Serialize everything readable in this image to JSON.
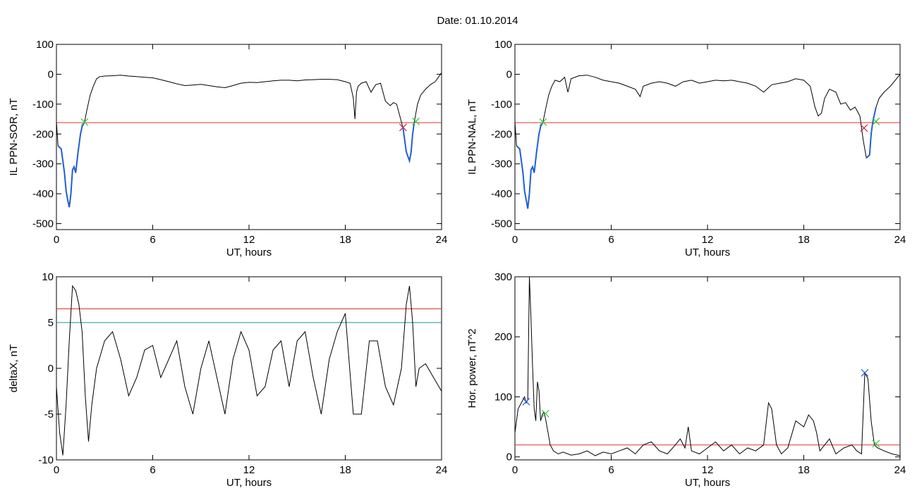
{
  "figure_title": "Date:  01.10.2014",
  "chart_data": [
    {
      "type": "line",
      "ylabel": "IL PPN-SOR, nT",
      "xlabel": "UT, hours",
      "xlim": [
        0,
        24
      ],
      "ylim": [
        -520,
        100
      ],
      "xticks": [
        "0",
        "6",
        "12",
        "18",
        "24"
      ],
      "xtick_values": [
        0,
        6,
        12,
        18,
        24
      ],
      "yticks": [
        "100",
        "0",
        "-100",
        "-200",
        "-300",
        "-400",
        "-500"
      ],
      "ytick_values": [
        100,
        0,
        -100,
        -200,
        -300,
        -400,
        -500
      ],
      "grid": false,
      "colors": {
        "series": "#000000",
        "highlight": "#1f5fd6",
        "threshold": "#e03030",
        "marker_green": "#33cc33",
        "marker_red": "#cc2244"
      },
      "series": [
        {
          "values_x": [
            0,
            0.1,
            0.3,
            0.5,
            0.6,
            0.7,
            0.8,
            0.9,
            1.0,
            1.1,
            1.2,
            1.35,
            1.5,
            1.6,
            1.75,
            1.9,
            2.1,
            2.3,
            2.5,
            2.7,
            3.0,
            3.5,
            4.0,
            4.5,
            5.0,
            5.5,
            6.0,
            6.5,
            7.0,
            7.5,
            8.0,
            8.5,
            9.0,
            9.5,
            10.0,
            10.5,
            11.0,
            11.5,
            12.0,
            12.5,
            13.0,
            13.5,
            14.0,
            14.5,
            15.0,
            15.5,
            16.0,
            16.5,
            17.0,
            17.5,
            18.0,
            18.3,
            18.5,
            18.6,
            18.7,
            18.8,
            19.0,
            19.3,
            19.6,
            19.9,
            20.2,
            20.5,
            20.8,
            21.0,
            21.2,
            21.4,
            21.6,
            21.8,
            22.0,
            22.1,
            22.2,
            22.3,
            22.5,
            22.7,
            23.0,
            23.3,
            23.6,
            23.8,
            24.0
          ],
          "values_y": [
            -160,
            -240,
            -250,
            -330,
            -390,
            -420,
            -445,
            -400,
            -320,
            -310,
            -330,
            -260,
            -200,
            -175,
            -160,
            -120,
            -70,
            -40,
            -15,
            -8,
            -6,
            -5,
            -3,
            -6,
            -8,
            -10,
            -12,
            -18,
            -25,
            -32,
            -38,
            -36,
            -34,
            -38,
            -42,
            -45,
            -38,
            -30,
            -27,
            -28,
            -25,
            -22,
            -20,
            -20,
            -22,
            -19,
            -18,
            -17,
            -17,
            -18,
            -25,
            -30,
            -80,
            -150,
            -60,
            -40,
            -30,
            -25,
            -60,
            -35,
            -30,
            -90,
            -105,
            -95,
            -100,
            -140,
            -180,
            -260,
            -290,
            -260,
            -200,
            -160,
            -100,
            -70,
            -50,
            -35,
            -25,
            -10,
            5
          ]
        }
      ],
      "threshold": -162,
      "marker_x": [
        1.75,
        21.6,
        22.4
      ],
      "marker_y": [
        -160,
        -178,
        -158
      ],
      "highlight_ranges": [
        [
          0.1,
          1.75
        ],
        [
          21.6,
          22.4
        ]
      ]
    },
    {
      "type": "line",
      "ylabel": "IL PPN-NAL, nT",
      "xlabel": "UT, hours",
      "xlim": [
        0,
        24
      ],
      "ylim": [
        -520,
        100
      ],
      "xticks": [
        "0",
        "6",
        "12",
        "18",
        "24"
      ],
      "xtick_values": [
        0,
        6,
        12,
        18,
        24
      ],
      "yticks": [
        "100",
        "0",
        "-100",
        "-200",
        "-300",
        "-400",
        "-500"
      ],
      "ytick_values": [
        100,
        0,
        -100,
        -200,
        -300,
        -400,
        -500
      ],
      "grid": false,
      "colors": {
        "series": "#000000",
        "highlight": "#1f5fd6",
        "threshold": "#e03030",
        "marker_green": "#33cc33",
        "marker_red": "#cc2244"
      },
      "series": [
        {
          "values_x": [
            0,
            0.1,
            0.3,
            0.5,
            0.6,
            0.7,
            0.8,
            0.9,
            1.0,
            1.1,
            1.2,
            1.35,
            1.5,
            1.6,
            1.75,
            1.9,
            2.1,
            2.3,
            2.5,
            2.8,
            3.1,
            3.3,
            3.5,
            4.0,
            4.5,
            5.0,
            5.5,
            6.0,
            6.5,
            7.0,
            7.5,
            7.8,
            8.0,
            8.5,
            9.0,
            9.5,
            10.0,
            10.5,
            11.0,
            11.5,
            12.0,
            12.5,
            13.0,
            13.5,
            14.0,
            14.5,
            15.0,
            15.5,
            16.0,
            16.5,
            17.0,
            17.5,
            18.0,
            18.4,
            18.7,
            18.9,
            19.1,
            19.3,
            19.6,
            20.0,
            20.3,
            20.6,
            20.9,
            21.2,
            21.5,
            21.7,
            21.9,
            22.1,
            22.2,
            22.3,
            22.5,
            22.7,
            23.0,
            23.4,
            23.7,
            24.0
          ],
          "values_y": [
            -160,
            -240,
            -250,
            -330,
            -390,
            -420,
            -450,
            -400,
            -320,
            -310,
            -330,
            -260,
            -200,
            -175,
            -160,
            -120,
            -70,
            -40,
            -20,
            -25,
            -10,
            -60,
            -15,
            -5,
            -3,
            -10,
            -20,
            -25,
            -30,
            -40,
            -50,
            -75,
            -40,
            -30,
            -25,
            -30,
            -40,
            -25,
            -20,
            -30,
            -25,
            -20,
            -22,
            -20,
            -25,
            -30,
            -40,
            -60,
            -35,
            -30,
            -25,
            -15,
            -20,
            -40,
            -110,
            -140,
            -130,
            -80,
            -50,
            -60,
            -100,
            -95,
            -120,
            -110,
            -140,
            -220,
            -280,
            -270,
            -200,
            -160,
            -110,
            -80,
            -60,
            -40,
            -20,
            0
          ]
        }
      ],
      "threshold": -162,
      "marker_x": [
        1.75,
        21.75,
        22.5
      ],
      "marker_y": [
        -160,
        -180,
        -158
      ],
      "highlight_ranges": [
        [
          0.1,
          1.75
        ],
        [
          21.75,
          22.5
        ]
      ]
    },
    {
      "type": "line",
      "ylabel": "deltaX, nT",
      "xlabel": "UT, hours",
      "xlim": [
        0,
        24
      ],
      "ylim": [
        -10,
        10
      ],
      "xticks": [
        "0",
        "6",
        "12",
        "18",
        "24"
      ],
      "xtick_values": [
        0,
        6,
        12,
        18,
        24
      ],
      "yticks": [
        "10",
        "5",
        "0",
        "-5",
        "-10"
      ],
      "ytick_values": [
        10,
        5,
        0,
        -5,
        -10
      ],
      "grid": false,
      "colors": {
        "series": "#000000",
        "threshold_red": "#e03030",
        "threshold_teal": "#1a8f8f"
      },
      "series": [
        {
          "values_x": [
            0,
            0.2,
            0.4,
            0.6,
            0.8,
            1.0,
            1.2,
            1.4,
            1.6,
            1.8,
            2.0,
            2.2,
            2.5,
            3.0,
            3.5,
            4.0,
            4.5,
            5.0,
            5.5,
            6.0,
            6.5,
            7.0,
            7.5,
            8.0,
            8.5,
            9.0,
            9.5,
            10.0,
            10.5,
            11.0,
            11.5,
            12.0,
            12.5,
            13.0,
            13.5,
            14.0,
            14.5,
            15.0,
            15.5,
            16.0,
            16.5,
            17.0,
            17.5,
            18.0,
            18.5,
            19.0,
            19.5,
            20.0,
            20.5,
            21.0,
            21.5,
            21.8,
            22.0,
            22.2,
            22.4,
            22.6,
            23.0,
            23.5,
            24.0
          ],
          "values_y": [
            -2,
            -7,
            -9.5,
            -4,
            3,
            9,
            8.5,
            7,
            4,
            -3,
            -8,
            -4,
            0,
            3,
            4,
            1,
            -3,
            -1,
            2,
            2.5,
            -1,
            1,
            3,
            -2,
            -5,
            0,
            3,
            -1,
            -5,
            1,
            4,
            2,
            -3,
            -2,
            2,
            3,
            -2,
            3,
            4,
            -1,
            -5,
            1,
            4,
            6,
            -5,
            -5,
            3,
            3,
            -2,
            -4,
            0,
            7,
            9,
            5,
            -2,
            0,
            0.5,
            -1,
            -2.5
          ]
        }
      ],
      "thresholds": [
        6.5,
        5
      ]
    },
    {
      "type": "line",
      "ylabel": "Hor. power, nT^2",
      "xlabel": "UT, hours",
      "xlim": [
        0,
        24
      ],
      "ylim": [
        -5,
        300
      ],
      "xticks": [
        "0",
        "6",
        "12",
        "18",
        "24"
      ],
      "xtick_values": [
        0,
        6,
        12,
        18,
        24
      ],
      "yticks": [
        "300",
        "200",
        "100",
        "0"
      ],
      "ytick_values": [
        300,
        200,
        100,
        0
      ],
      "grid": false,
      "colors": {
        "series": "#000000",
        "threshold": "#e03030",
        "marker_blue": "#1f5fd6",
        "marker_green": "#33cc33"
      },
      "series": [
        {
          "values_x": [
            0,
            0.2,
            0.4,
            0.6,
            0.7,
            0.8,
            0.9,
            1.0,
            1.1,
            1.2,
            1.3,
            1.4,
            1.5,
            1.6,
            1.7,
            1.8,
            1.9,
            2.0,
            2.2,
            2.4,
            2.7,
            3.0,
            3.5,
            4.0,
            4.5,
            5.0,
            5.5,
            6.0,
            6.5,
            7.0,
            7.5,
            8.0,
            8.5,
            9.0,
            9.5,
            10.0,
            10.3,
            10.6,
            10.8,
            11.0,
            11.5,
            12.0,
            12.5,
            13.0,
            13.5,
            14.0,
            14.5,
            15.0,
            15.5,
            15.8,
            16.0,
            16.3,
            16.6,
            17.0,
            17.5,
            18.0,
            18.3,
            18.6,
            18.8,
            19.0,
            19.3,
            19.6,
            20.0,
            20.5,
            21.0,
            21.3,
            21.6,
            21.8,
            22.0,
            22.2,
            22.4,
            22.6,
            23.0,
            23.5,
            24.0
          ],
          "values_y": [
            40,
            80,
            90,
            100,
            90,
            95,
            300,
            230,
            150,
            80,
            60,
            125,
            110,
            60,
            70,
            75,
            65,
            50,
            20,
            10,
            5,
            8,
            3,
            5,
            10,
            2,
            8,
            5,
            10,
            15,
            5,
            20,
            25,
            10,
            5,
            20,
            30,
            15,
            50,
            10,
            5,
            15,
            25,
            10,
            20,
            5,
            15,
            10,
            20,
            90,
            80,
            20,
            5,
            15,
            60,
            50,
            70,
            60,
            40,
            10,
            20,
            30,
            5,
            15,
            20,
            10,
            5,
            140,
            130,
            60,
            20,
            15,
            10,
            5,
            2
          ]
        }
      ],
      "threshold": 20,
      "marker_x": [
        0.7,
        1.9,
        21.8,
        22.5
      ],
      "marker_y": [
        92,
        72,
        140,
        22
      ]
    }
  ]
}
